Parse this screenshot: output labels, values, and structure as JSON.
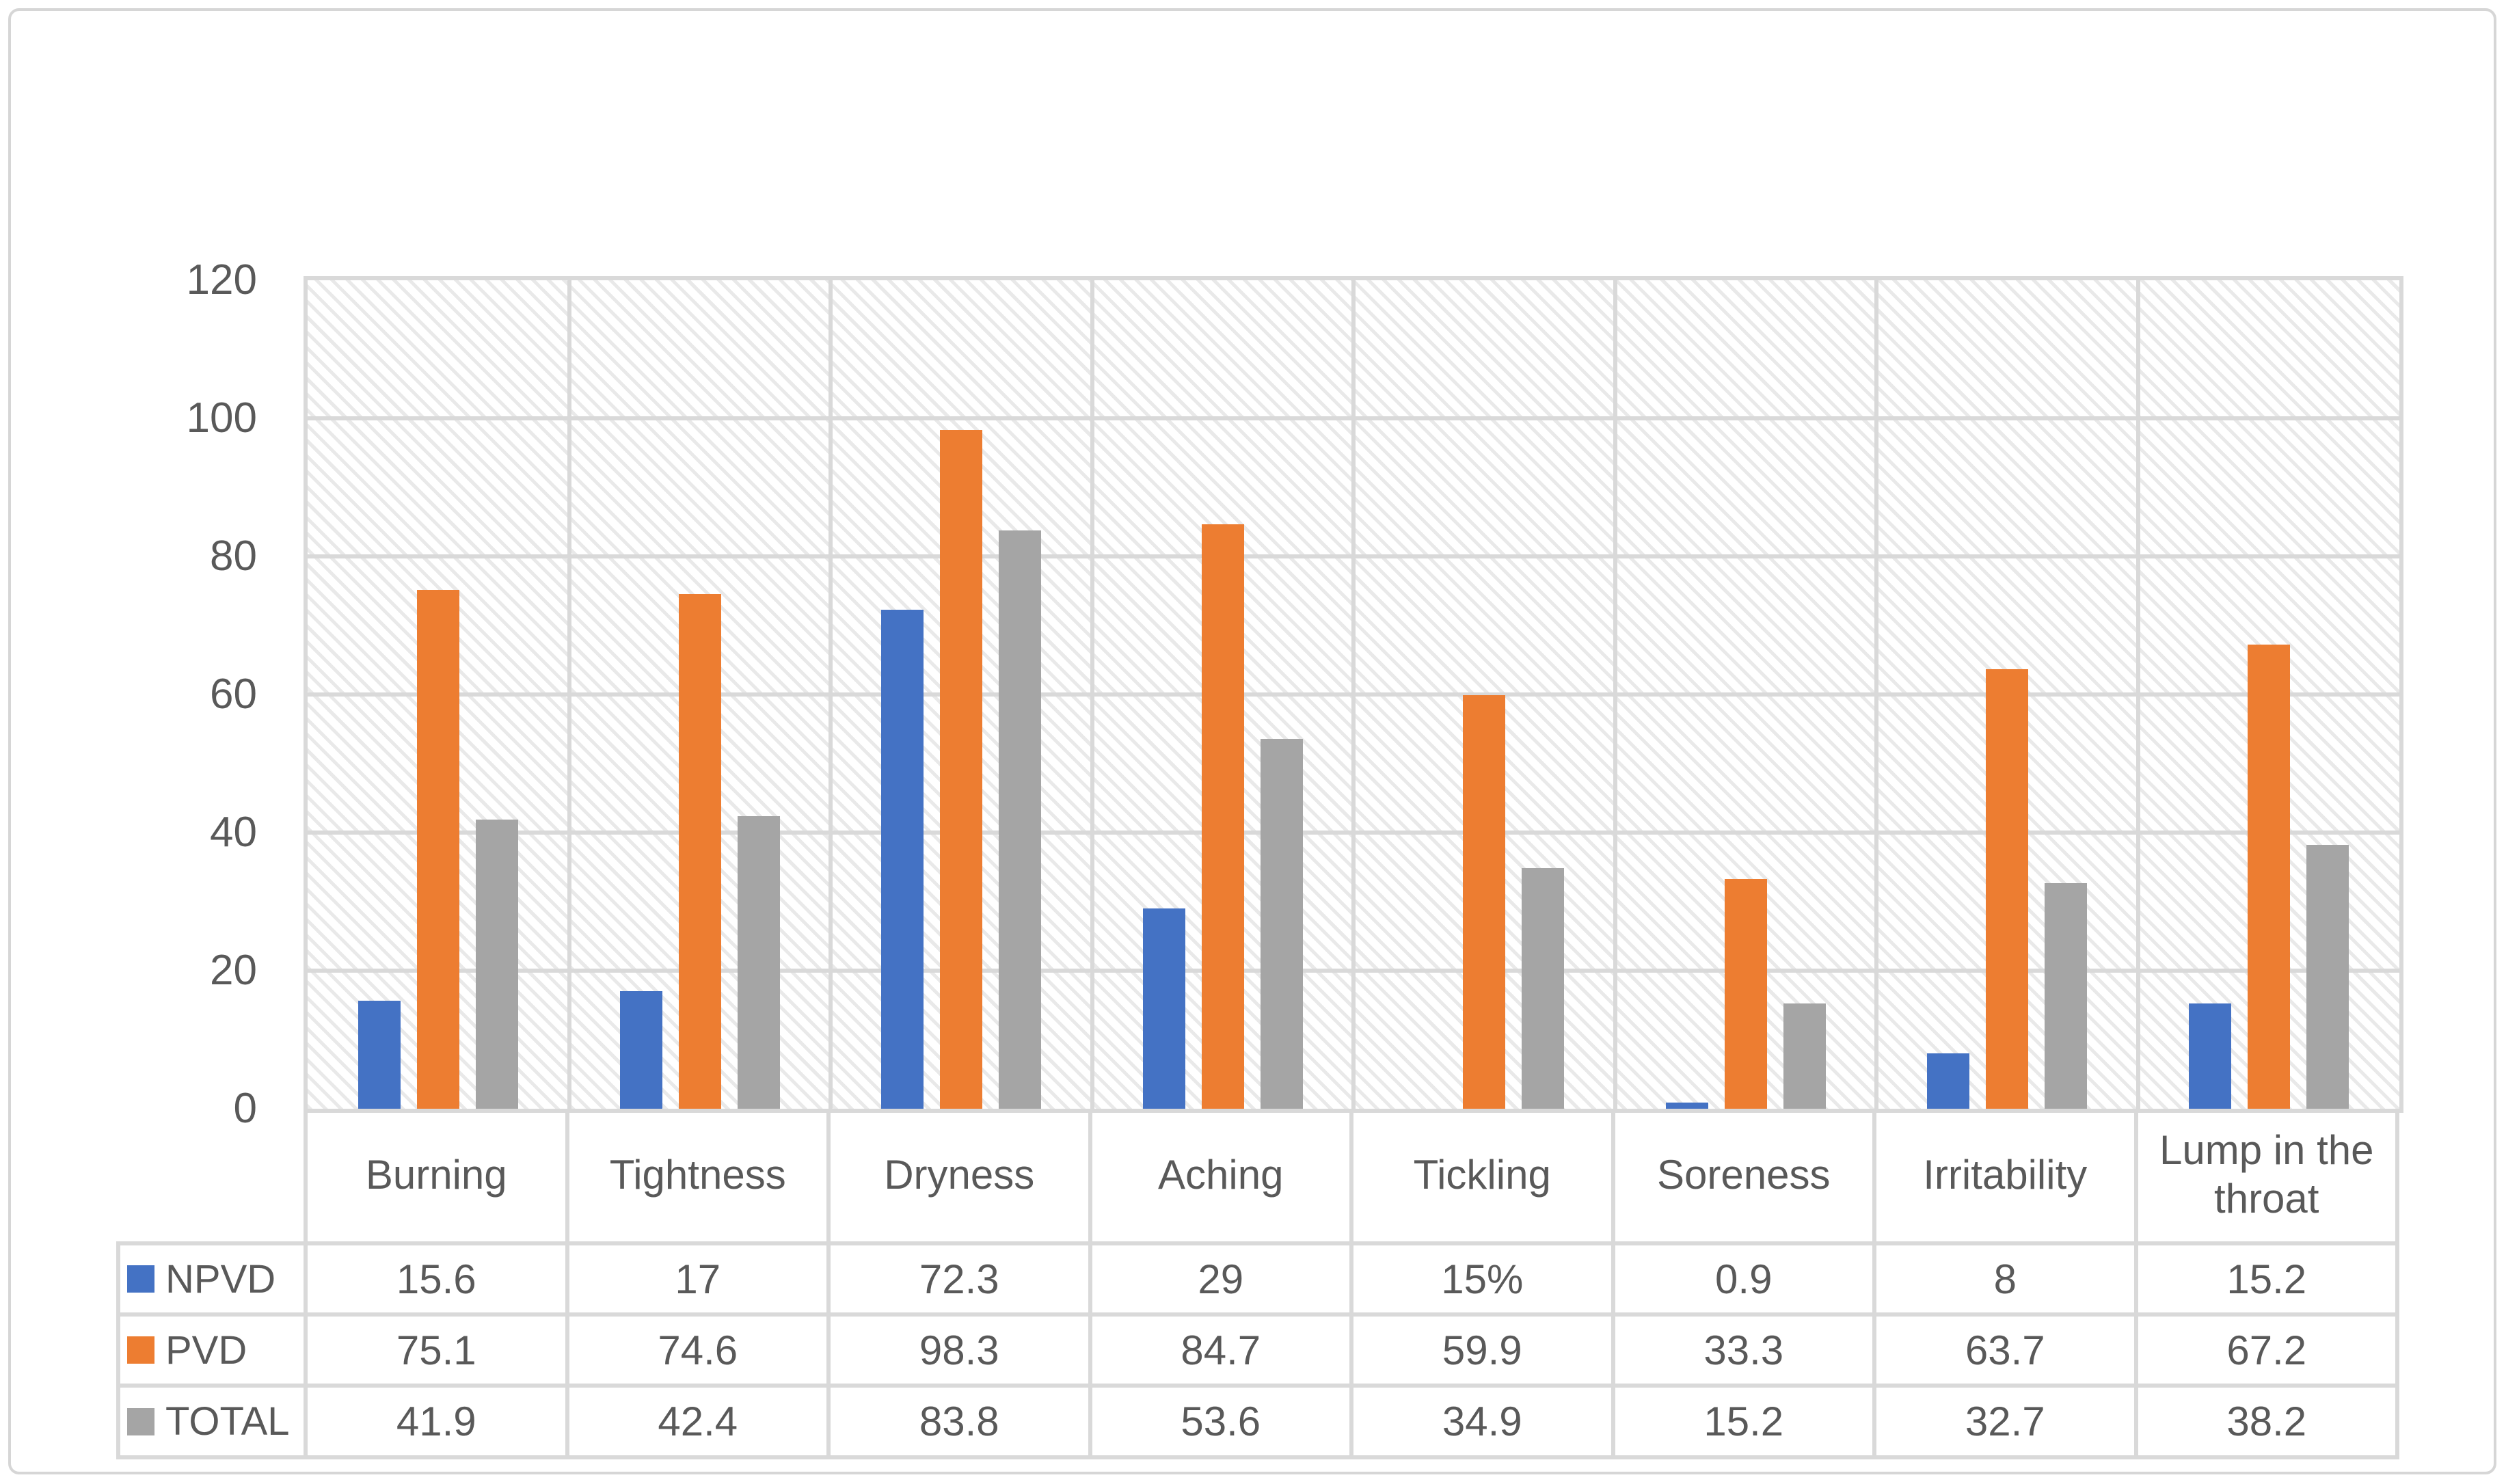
{
  "chart_data": {
    "type": "bar",
    "title": "",
    "categories": [
      "Burning",
      "Tightness",
      "Dryness",
      "Aching",
      "Tickling",
      "Soreness",
      "Irritability",
      "Lump in the throat"
    ],
    "series": [
      {
        "name": "NPVD",
        "color": "#4472C4",
        "values": [
          15.6,
          17,
          72.3,
          29,
          null,
          0.9,
          8,
          15.2
        ],
        "display": [
          "15.6",
          "17",
          "72.3",
          "29",
          "15%",
          "0.9",
          "8",
          "15.2"
        ]
      },
      {
        "name": "PVD",
        "color": "#ED7D31",
        "values": [
          75.1,
          74.6,
          98.3,
          84.7,
          59.9,
          33.3,
          63.7,
          67.2
        ],
        "display": [
          "75.1",
          "74.6",
          "98.3",
          "84.7",
          "59.9",
          "33.3",
          "63.7",
          "67.2"
        ]
      },
      {
        "name": "TOTAL",
        "color": "#A5A5A5",
        "values": [
          41.9,
          42.4,
          83.8,
          53.6,
          34.9,
          15.2,
          32.7,
          38.2
        ],
        "display": [
          "41.9",
          "42.4",
          "83.8",
          "53.6",
          "34.9",
          "15.2",
          "32.7",
          "38.2"
        ]
      }
    ],
    "ylim": [
      0,
      120
    ],
    "ytick_step": 20,
    "yticks": [
      "0",
      "20",
      "40",
      "60",
      "80",
      "100",
      "120"
    ],
    "xlabel": "",
    "ylabel": "",
    "grid": "horizontal gridlines every 20; vertical separators between categories",
    "legend_position": "left column of data table",
    "plot_background": "light diagonal hatch pattern"
  },
  "colors": {
    "grid": "#D9D9D9",
    "frame_border": "#D6D6D6",
    "text": "#595959",
    "hatch": "#E9E9E9",
    "background": "#FFFFFF"
  }
}
